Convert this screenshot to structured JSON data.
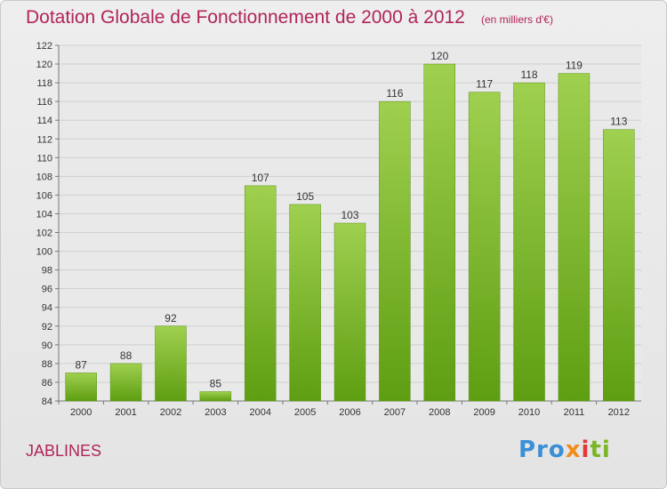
{
  "title": "Dotation Globale de Fonctionnement de 2000 à 2012",
  "subtitle": "(en milliers d'€)",
  "town": "JABLINES",
  "logo": {
    "part1": "Pro",
    "part2": "x",
    "part3": "i",
    "part4": "ti"
  },
  "colors": {
    "title": "#b0245a",
    "bar_top": "#9fd04f",
    "bar_bottom": "#5e9e12",
    "background": "#e8e8e8"
  },
  "chart_data": {
    "type": "bar",
    "categories": [
      "2000",
      "2001",
      "2002",
      "2003",
      "2004",
      "2005",
      "2006",
      "2007",
      "2008",
      "2009",
      "2010",
      "2011",
      "2012"
    ],
    "values": [
      87,
      88,
      92,
      85,
      107,
      105,
      103,
      116,
      120,
      117,
      118,
      119,
      113
    ],
    "ylim": [
      84,
      122
    ],
    "yticks": [
      84,
      86,
      88,
      90,
      92,
      94,
      96,
      98,
      100,
      102,
      104,
      106,
      108,
      110,
      112,
      114,
      116,
      118,
      120,
      122
    ],
    "grid": true,
    "legend": "none"
  }
}
